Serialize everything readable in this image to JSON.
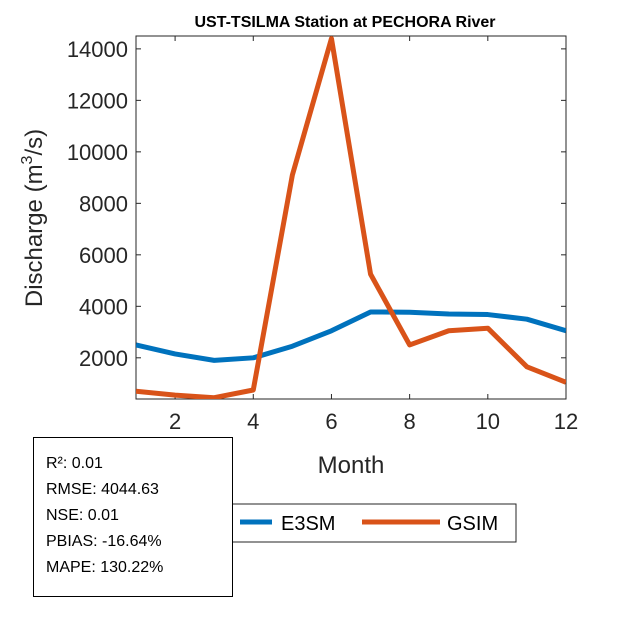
{
  "chart_data": {
    "type": "line",
    "title": "UST-TSILMA  Station at  PECHORA  River",
    "xlabel": "Month",
    "ylabel_main": "Discharge (m",
    "ylabel_sup": "3",
    "ylabel_tail": "/s)",
    "x": [
      1,
      2,
      3,
      4,
      5,
      6,
      7,
      8,
      9,
      10,
      11,
      12
    ],
    "xlim": [
      1,
      12
    ],
    "ylim": [
      400,
      14500
    ],
    "xticks": [
      2,
      4,
      6,
      8,
      10,
      12
    ],
    "yticks": [
      2000,
      4000,
      6000,
      8000,
      10000,
      12000,
      14000
    ],
    "grid": false,
    "legend_position": "bottom",
    "series": [
      {
        "name": "E3SM",
        "color": "#0072BD",
        "values": [
          2500,
          2150,
          1900,
          2000,
          2450,
          3050,
          3780,
          3770,
          3700,
          3680,
          3500,
          3050
        ]
      },
      {
        "name": "GSIM",
        "color": "#D95319",
        "values": [
          700,
          550,
          450,
          750,
          9100,
          14400,
          5250,
          2500,
          3050,
          3150,
          1650,
          1050
        ]
      }
    ]
  },
  "stats": {
    "r2": "R²: 0.01",
    "rmse": "RMSE: 4044.63",
    "nse": "NSE: 0.01",
    "pbias": "PBIAS: -16.64%",
    "mape": "MAPE: 130.22%"
  }
}
